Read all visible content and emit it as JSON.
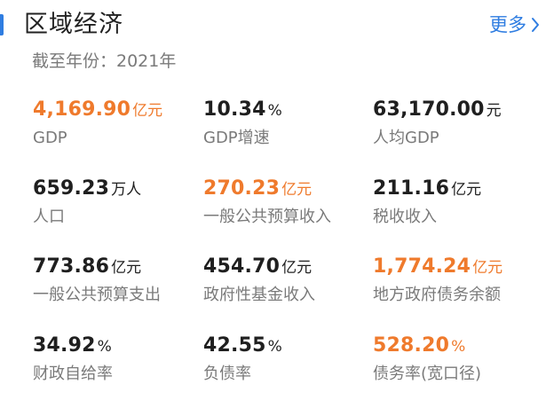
{
  "header": {
    "title": "区域经济",
    "more_label": "更多",
    "more_icon": "chevron-right-icon",
    "accent_color": "#2f7de1"
  },
  "subtitle": "截至年份：2021年",
  "colors": {
    "highlight": "#ef7a2c",
    "text": "#1f1f1f",
    "muted": "#7a7a7a"
  },
  "metrics": [
    {
      "value": "4,169.90",
      "unit": "亿元",
      "label": "GDP",
      "highlight": true
    },
    {
      "value": "10.34",
      "unit": "%",
      "label": "GDP增速",
      "highlight": false
    },
    {
      "value": "63,170.00",
      "unit": "元",
      "label": "人均GDP",
      "highlight": false
    },
    {
      "value": "659.23",
      "unit": "万人",
      "label": "人口",
      "highlight": false
    },
    {
      "value": "270.23",
      "unit": "亿元",
      "label": "一般公共预算收入",
      "highlight": true
    },
    {
      "value": "211.16",
      "unit": "亿元",
      "label": "税收收入",
      "highlight": false
    },
    {
      "value": "773.86",
      "unit": "亿元",
      "label": "一般公共预算支出",
      "highlight": false
    },
    {
      "value": "454.70",
      "unit": "亿元",
      "label": "政府性基金收入",
      "highlight": false
    },
    {
      "value": "1,774.24",
      "unit": "亿元",
      "label": "地方政府债务余额",
      "highlight": true
    },
    {
      "value": "34.92",
      "unit": "%",
      "label": "财政自给率",
      "highlight": false
    },
    {
      "value": "42.55",
      "unit": "%",
      "label": "负债率",
      "highlight": false
    },
    {
      "value": "528.20",
      "unit": "%",
      "label": "债务率(宽口径)",
      "highlight": true
    }
  ]
}
